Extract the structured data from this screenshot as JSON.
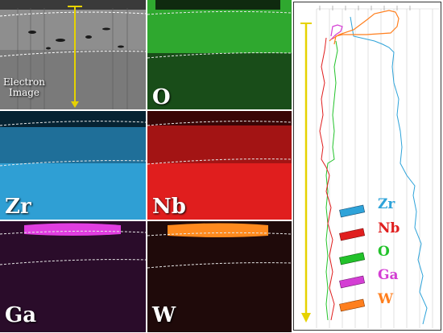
{
  "maps": [
    {
      "id": "electron",
      "label": "Electron Image",
      "label_lines": [
        "Electron",
        "Image"
      ],
      "color": "#7a7a7a"
    },
    {
      "id": "O",
      "label": "O",
      "color": "#2fbf2f"
    },
    {
      "id": "Zr",
      "label": "Zr",
      "color": "#2ea3d9"
    },
    {
      "id": "Nb",
      "label": "Nb",
      "color": "#e01e1e"
    },
    {
      "id": "Ga",
      "label": "Ga",
      "color": "#d43ed4"
    },
    {
      "id": "W",
      "label": "W",
      "color": "#ff8a1e"
    }
  ],
  "legend": [
    {
      "label": "Zr",
      "color": "#2ea3d9"
    },
    {
      "label": "Nb",
      "color": "#e01e1e"
    },
    {
      "label": "O",
      "color": "#22c22a"
    },
    {
      "label": "Ga",
      "color": "#d43ed4"
    },
    {
      "label": "W",
      "color": "#ff7f1e"
    }
  ],
  "arrow_color": "#e6d200"
}
